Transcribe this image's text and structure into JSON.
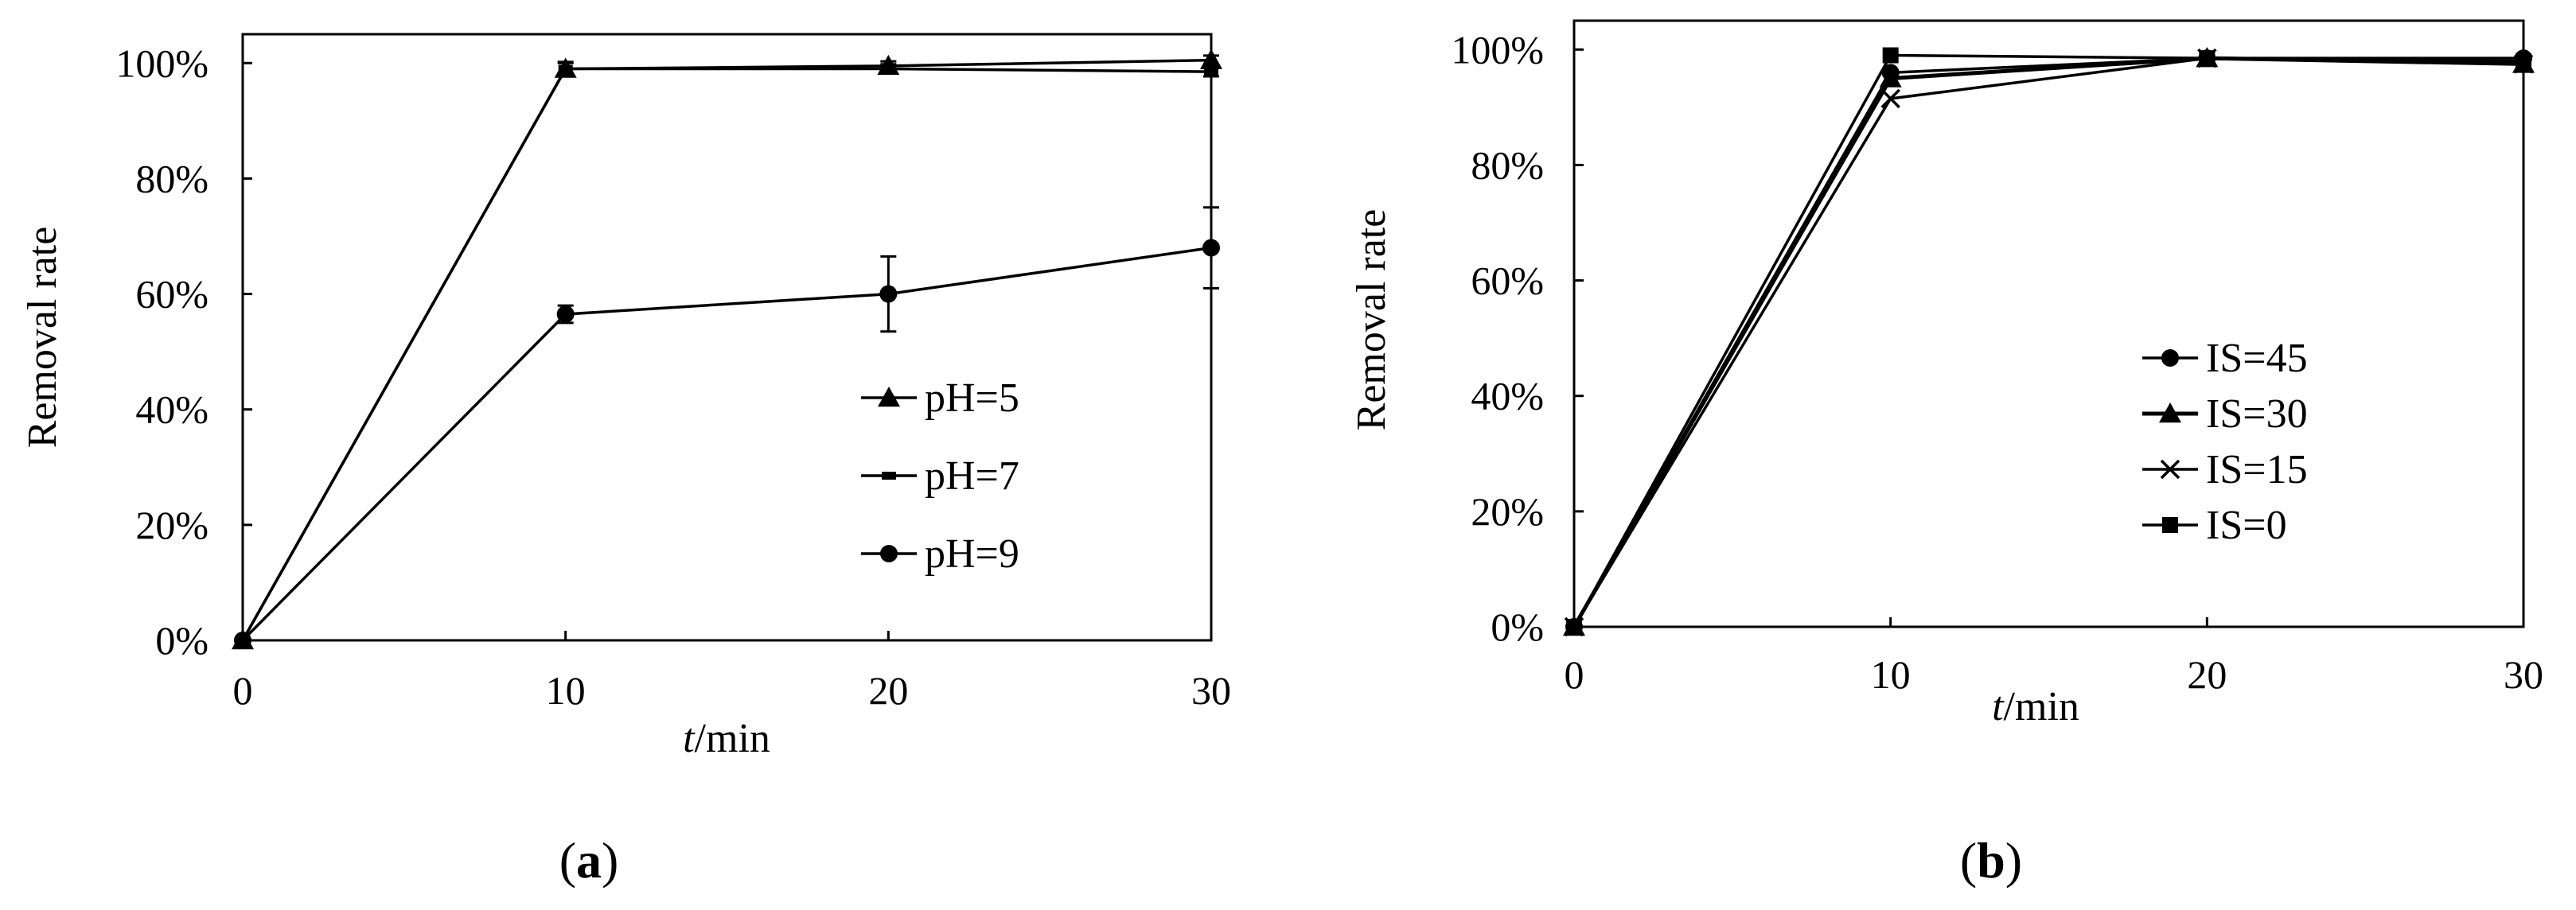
{
  "chart_data": [
    {
      "panel": "(a)",
      "type": "line",
      "xlabel_italic": "t",
      "xlabel_rest": "/min",
      "ylabel": "Removal rate",
      "x": [
        0,
        10,
        20,
        30
      ],
      "xlim": [
        0,
        30
      ],
      "ylim": [
        0,
        105
      ],
      "xticks": [
        "0",
        "10",
        "20",
        "30"
      ],
      "yticks": [
        "0%",
        "20%",
        "40%",
        "60%",
        "80%",
        "100%"
      ],
      "grid": false,
      "legend_position": "center-right",
      "series": [
        {
          "name": "pH=5",
          "marker": "triangle",
          "values": [
            0,
            99,
            99.5,
            100.5
          ],
          "errors": [
            0,
            1.2,
            0.8,
            0.8
          ]
        },
        {
          "name": "pH=7",
          "marker": "dash",
          "values": [
            0,
            99,
            99,
            98.5
          ],
          "errors": [
            0,
            1,
            0.8,
            0.8
          ]
        },
        {
          "name": "pH=9",
          "marker": "circle",
          "values": [
            0,
            56.5,
            60,
            68
          ],
          "errors": [
            0,
            1.5,
            6.5,
            7
          ]
        }
      ]
    },
    {
      "panel": "(b)",
      "type": "line",
      "xlabel_italic": "t",
      "xlabel_rest": "/min",
      "ylabel": "Removal rate",
      "x": [
        0,
        10,
        20,
        30
      ],
      "xlim": [
        0,
        30
      ],
      "ylim": [
        0,
        105
      ],
      "xticks": [
        "0",
        "10",
        "20",
        "30"
      ],
      "yticks": [
        "0%",
        "20%",
        "40%",
        "60%",
        "80%",
        "100%"
      ],
      "grid": false,
      "legend_position": "center-right",
      "series": [
        {
          "name": "IS=45",
          "marker": "circle",
          "values": [
            0,
            96,
            98.5,
            98.5
          ]
        },
        {
          "name": "IS=30",
          "marker": "triangle",
          "values": [
            0,
            95,
            98.5,
            97.5
          ]
        },
        {
          "name": "IS=15",
          "marker": "cross",
          "values": [
            0,
            91.5,
            98.5,
            97.5
          ]
        },
        {
          "name": "IS=0",
          "marker": "square",
          "values": [
            0,
            99,
            98.5,
            98
          ]
        }
      ]
    }
  ]
}
